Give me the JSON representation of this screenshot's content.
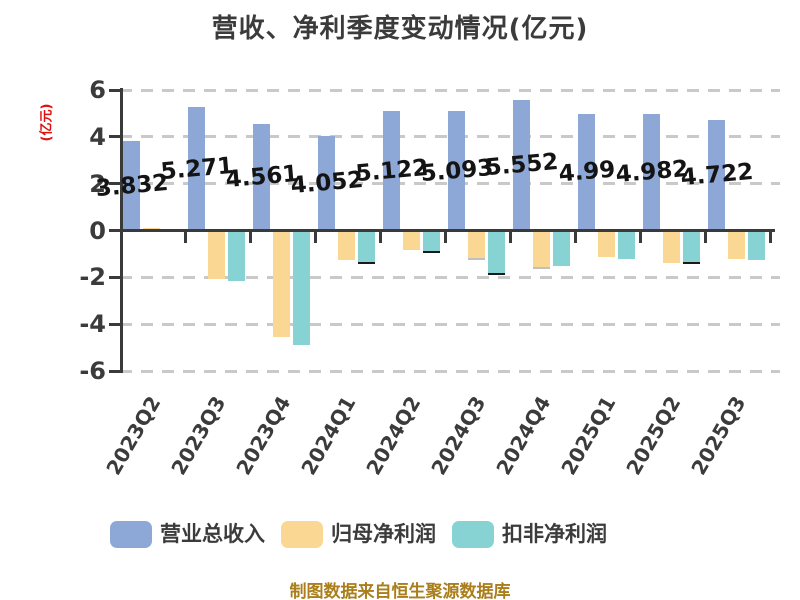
{
  "chart_data": {
    "type": "bar",
    "title": "营收、净利季度变动情况(亿元)",
    "ylabel": "(亿元)",
    "ylabel_color": "#e01010",
    "ylim": [
      -6,
      6
    ],
    "yticks": [
      6,
      4,
      2,
      0,
      -2,
      -4,
      -6
    ],
    "grid": "horizontal-dashed",
    "legend_position": "bottom",
    "categories": [
      "2023Q2",
      "2023Q3",
      "2023Q4",
      "2024Q1",
      "2024Q2",
      "2024Q3",
      "2024Q4",
      "2025Q1",
      "2025Q2",
      "2025Q3"
    ],
    "series": [
      {
        "name": "营业总收入",
        "color": "#8da8d6",
        "value_labels": true,
        "values": [
          3.832,
          5.271,
          4.561,
          4.052,
          5.122,
          5.093,
          5.552,
          4.99,
          4.982,
          4.722
        ]
      },
      {
        "name": "归母净利润",
        "color": "#fad894",
        "value_labels": false,
        "bottom_edge_indices": [
          5,
          6
        ],
        "bottom_edge_color": "#c0c0c0",
        "values": [
          0.1,
          -2.08,
          -4.56,
          -1.25,
          -0.82,
          -1.18,
          -1.58,
          -1.14,
          -1.38,
          -1.22
        ]
      },
      {
        "name": "扣非净利润",
        "color": "#87d3d3",
        "value_labels": false,
        "bottom_edge_indices": [
          3,
          4,
          5,
          8
        ],
        "bottom_edge_color": "#1a1a1a",
        "values": [
          -0.06,
          -2.14,
          -4.9,
          -1.33,
          -0.87,
          -1.83,
          -1.51,
          -1.2,
          -1.36,
          -1.28
        ]
      }
    ]
  },
  "footer": {
    "text": "制图数据来自恒生聚源数据库",
    "color": "#aa7e1a"
  },
  "colors": {
    "background": "#ffffff",
    "axis": "#3a3a3a",
    "gridline": "#c9c9c9",
    "text": "#3b3b3b",
    "value_label": "#141414"
  }
}
